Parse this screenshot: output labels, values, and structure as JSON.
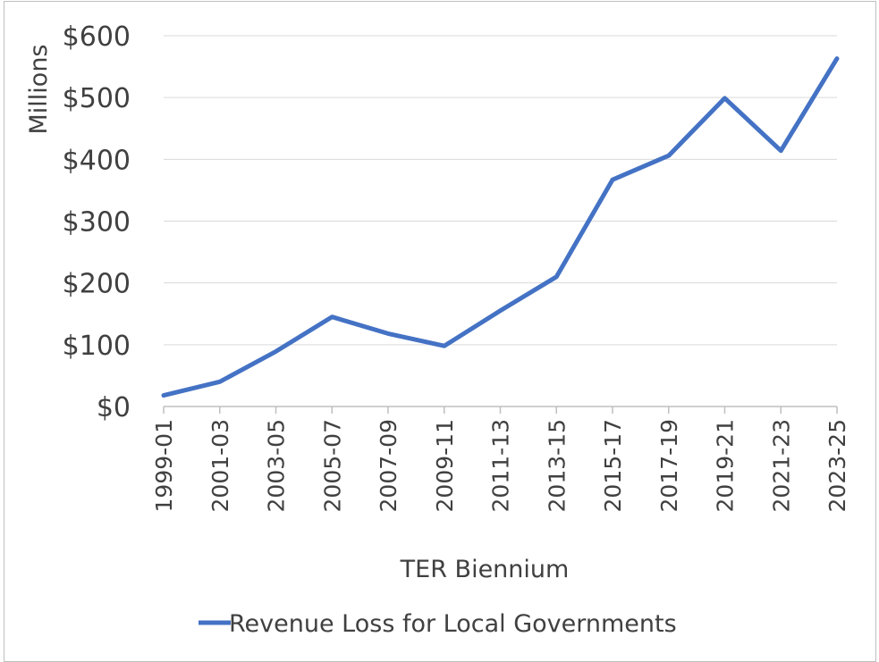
{
  "chart_data": {
    "type": "line",
    "title": "",
    "xlabel": "TER Biennium",
    "ylabel": "Millions",
    "categories": [
      "1999-01",
      "2001-03",
      "2003-05",
      "2005-07",
      "2007-09",
      "2009-11",
      "2011-13",
      "2013-15",
      "2015-17",
      "2017-19",
      "2019-21",
      "2021-23",
      "2023-25"
    ],
    "series": [
      {
        "name": "Revenue Loss for Local Governments",
        "color": "#4472c4",
        "values": [
          18,
          40,
          89,
          145,
          118,
          98,
          155,
          210,
          367,
          406,
          499,
          414,
          563
        ]
      }
    ],
    "ylim": [
      0,
      600
    ],
    "yticks": [
      0,
      100,
      200,
      300,
      400,
      500,
      600
    ],
    "ytick_labels": [
      "$0",
      "$100",
      "$200",
      "$300",
      "$400",
      "$500",
      "$600"
    ],
    "grid": true,
    "legend_position": "bottom"
  }
}
